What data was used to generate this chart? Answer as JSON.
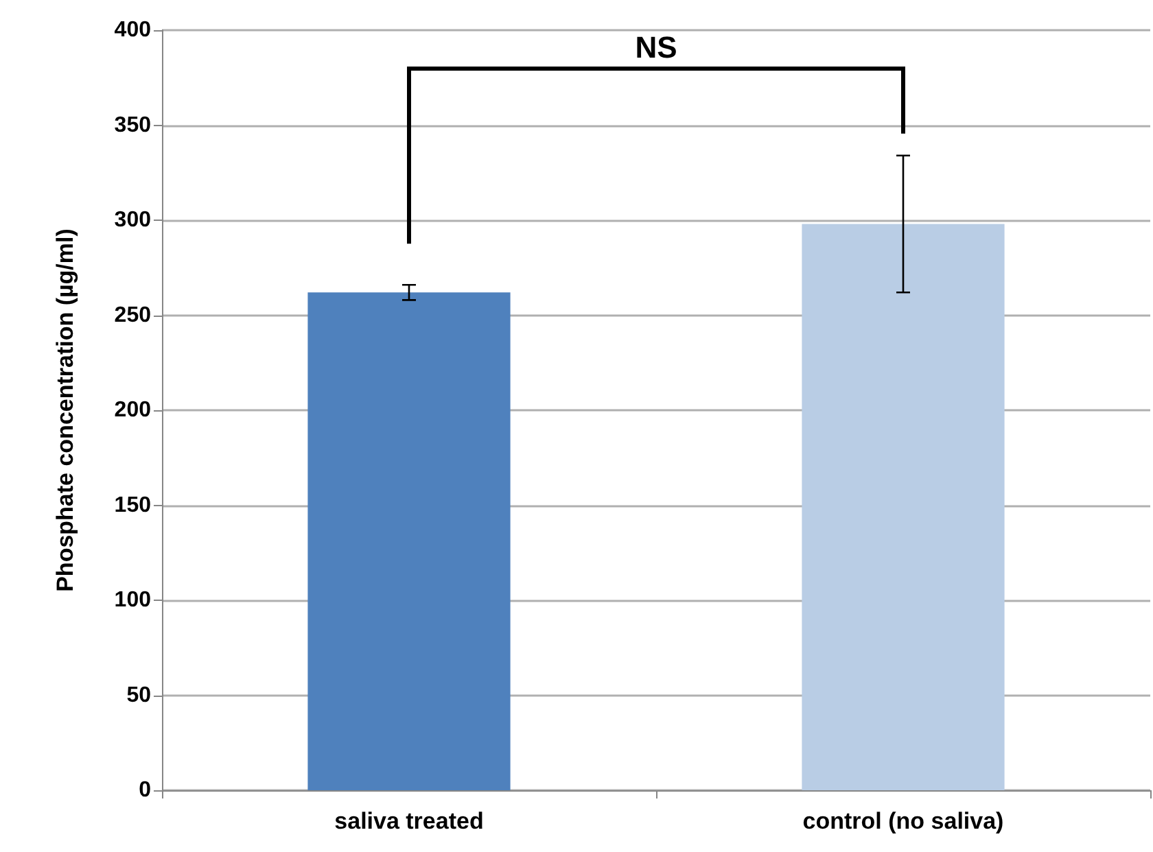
{
  "chart_data": {
    "type": "bar",
    "ylabel": "Phosphate concentration (µg/ml)",
    "categories": [
      "saliva treated",
      "control (no saliva)"
    ],
    "values": [
      262,
      298
    ],
    "colors": [
      "#4f81bd",
      "#b9cde5"
    ],
    "errors": [
      4,
      36
    ],
    "ylim": [
      0,
      400
    ],
    "yticks": [
      0,
      50,
      100,
      150,
      200,
      250,
      300,
      350,
      400
    ],
    "grid": "y",
    "annotations": [
      "NS"
    ]
  }
}
